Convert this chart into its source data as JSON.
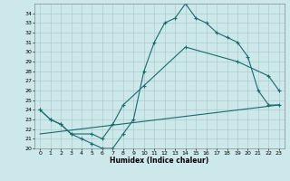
{
  "xlabel": "Humidex (Indice chaleur)",
  "bg_color": "#cce8ea",
  "grid_color": "#aacccc",
  "line_color": "#1a6b6b",
  "xlim": [
    -0.5,
    23.5
  ],
  "ylim": [
    20,
    35
  ],
  "xticks": [
    0,
    1,
    2,
    3,
    4,
    5,
    6,
    7,
    8,
    9,
    10,
    11,
    12,
    13,
    14,
    15,
    16,
    17,
    18,
    19,
    20,
    21,
    22,
    23
  ],
  "yticks": [
    20,
    21,
    22,
    23,
    24,
    25,
    26,
    27,
    28,
    29,
    30,
    31,
    32,
    33,
    34
  ],
  "line1_x": [
    0,
    1,
    2,
    3,
    4,
    5,
    6,
    7,
    8,
    9,
    10,
    11,
    12,
    13,
    14,
    15,
    16,
    17,
    18,
    19,
    20,
    21,
    22,
    23
  ],
  "line1_y": [
    24.0,
    23.0,
    22.5,
    21.5,
    21.0,
    20.5,
    20.0,
    20.0,
    21.5,
    23.0,
    28.0,
    31.0,
    33.0,
    33.5,
    35.0,
    33.5,
    33.0,
    32.0,
    31.5,
    31.0,
    29.5,
    26.0,
    24.5,
    24.5
  ],
  "line2_x": [
    0,
    1,
    2,
    3,
    5,
    6,
    7,
    8,
    10,
    14,
    19,
    22,
    23
  ],
  "line2_y": [
    24.0,
    23.0,
    22.5,
    21.5,
    21.5,
    21.0,
    22.5,
    24.5,
    26.5,
    30.5,
    29.0,
    27.5,
    26.0
  ],
  "line3_x": [
    0,
    23
  ],
  "line3_y": [
    21.5,
    24.5
  ]
}
